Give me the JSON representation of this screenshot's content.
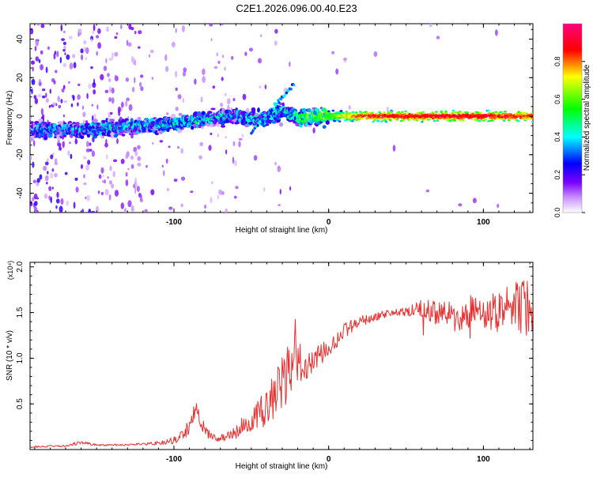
{
  "title": "C2E1.2026.096.00.40.E23",
  "colors": {
    "line": "#e83030",
    "axis": "#000000",
    "background": "#ffffff"
  },
  "chart_data": [
    {
      "type": "heatmap",
      "xlabel": "Height of straight line (km)",
      "ylabel": "Frequency (Hz)",
      "xlim": [
        -193,
        132
      ],
      "ylim": [
        -50,
        48
      ],
      "xticks": [
        -100,
        0,
        100
      ],
      "xtick_labels": [
        "-100",
        "0",
        "100"
      ],
      "yticks": [
        -40,
        -20,
        0,
        20,
        40
      ],
      "ytick_labels": [
        "-40",
        "-20",
        "0",
        "20",
        "40"
      ],
      "colorbar": {
        "label": "Normalized spectral amplitude",
        "range": [
          0,
          1
        ],
        "ticks": [
          0.0,
          0.2,
          0.4,
          0.6,
          0.8
        ],
        "tick_labels": [
          "0.0",
          "0.2",
          "0.4",
          "0.6",
          "0.8"
        ],
        "colormap": [
          "#ffffff",
          "#8a00ff",
          "#0000ff",
          "#00ffff",
          "#00ff00",
          "#ffff00",
          "#ff0000",
          "#ff00ff"
        ]
      },
      "ridge": [
        {
          "x": -190,
          "freq": -7,
          "amp": 0.25
        },
        {
          "x": -170,
          "freq": -7,
          "amp": 0.25
        },
        {
          "x": -160,
          "freq": -7,
          "amp": 0.3
        },
        {
          "x": -140,
          "freq": -6,
          "amp": 0.3
        },
        {
          "x": -120,
          "freq": -5,
          "amp": 0.3
        },
        {
          "x": -100,
          "freq": -4,
          "amp": 0.35
        },
        {
          "x": -80,
          "freq": -1,
          "amp": 0.35
        },
        {
          "x": -60,
          "freq": 0,
          "amp": 0.3
        },
        {
          "x": -40,
          "freq": -2,
          "amp": 0.3
        },
        {
          "x": -30,
          "freq": 3,
          "amp": 0.35
        },
        {
          "x": -20,
          "freq": -1,
          "amp": 0.45
        },
        {
          "x": 0,
          "freq": 0,
          "amp": 0.55
        },
        {
          "x": 20,
          "freq": 0,
          "amp": 0.85
        },
        {
          "x": 60,
          "freq": 0,
          "amp": 0.9
        },
        {
          "x": 100,
          "freq": 0,
          "amp": 0.9
        },
        {
          "x": 132,
          "freq": 0,
          "amp": 0.85
        }
      ]
    },
    {
      "type": "line",
      "xlabel": "Height of straight line (km)",
      "ylabel": "SNR (10 * v/v)",
      "y_multiplier": "(x10⁴)",
      "xlim": [
        -193,
        132
      ],
      "ylim": [
        0,
        2.05
      ],
      "xticks": [
        -100,
        0,
        100
      ],
      "xtick_labels": [
        "-100",
        "0",
        "100"
      ],
      "yticks": [
        0.5,
        1.0,
        1.5,
        2.0
      ],
      "ytick_labels": [
        "0.5",
        "1.0",
        "1.5",
        "2.0"
      ],
      "series": [
        {
          "name": "SNR",
          "x": [
            -193,
            -170,
            -160,
            -150,
            -130,
            -110,
            -100,
            -95,
            -90,
            -86,
            -80,
            -75,
            -70,
            -60,
            -55,
            -50,
            -45,
            -40,
            -35,
            -30,
            -25,
            -22,
            -18,
            -15,
            -10,
            -5,
            0,
            5,
            10,
            20,
            30,
            40,
            50,
            60,
            70,
            80,
            90,
            100,
            110,
            115,
            120,
            125,
            130
          ],
          "y": [
            0.03,
            0.04,
            0.08,
            0.05,
            0.05,
            0.07,
            0.1,
            0.16,
            0.25,
            0.45,
            0.2,
            0.15,
            0.12,
            0.18,
            0.28,
            0.34,
            0.4,
            0.45,
            0.6,
            0.75,
            0.85,
            1.0,
            0.8,
            0.9,
            0.95,
            1.05,
            1.1,
            1.2,
            1.3,
            1.4,
            1.45,
            1.5,
            1.5,
            1.55,
            1.5,
            1.45,
            1.5,
            1.5,
            1.5,
            1.55,
            1.6,
            1.55,
            1.55
          ],
          "noise": [
            0.01,
            0.01,
            0.02,
            0.01,
            0.01,
            0.02,
            0.04,
            0.06,
            0.1,
            0.1,
            0.07,
            0.05,
            0.04,
            0.07,
            0.1,
            0.14,
            0.16,
            0.2,
            0.25,
            0.3,
            0.35,
            0.3,
            0.2,
            0.15,
            0.12,
            0.12,
            0.1,
            0.1,
            0.08,
            0.06,
            0.05,
            0.04,
            0.05,
            0.1,
            0.15,
            0.18,
            0.2,
            0.2,
            0.22,
            0.25,
            0.3,
            0.3,
            0.3
          ]
        }
      ]
    }
  ]
}
